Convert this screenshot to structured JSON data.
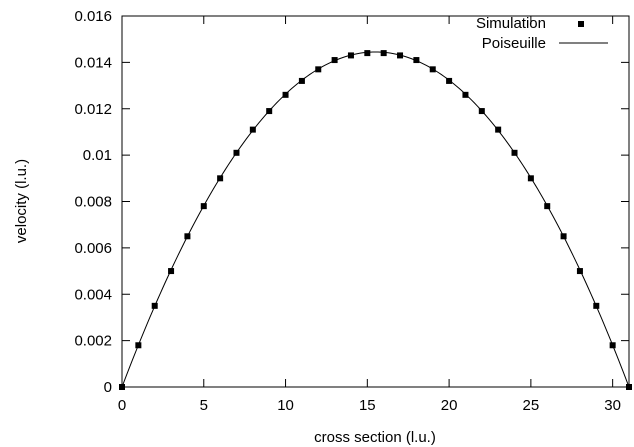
{
  "chart_data": {
    "type": "scatter",
    "title": "",
    "xlabel": "cross section (l.u.)",
    "ylabel": "velocity (l.u.)",
    "xlim": [
      0,
      31
    ],
    "ylim": [
      0,
      0.016
    ],
    "xticks": [
      0,
      5,
      10,
      15,
      20,
      25,
      30
    ],
    "yticks": [
      0,
      0.002,
      0.004,
      0.006,
      0.008,
      0.01,
      0.012,
      0.014,
      0.016
    ],
    "xtick_labels": [
      "0",
      "5",
      "10",
      "15",
      "20",
      "25",
      "30"
    ],
    "ytick_labels": [
      "0",
      "0.002",
      "0.004",
      "0.006",
      "0.008",
      "0.01",
      "0.012",
      "0.014",
      "0.016"
    ],
    "grid": false,
    "legend_position": "top-right",
    "series": [
      {
        "name": "Simulation",
        "style": "square-markers",
        "color": "#000000",
        "x": [
          0,
          1,
          2,
          3,
          4,
          5,
          6,
          7,
          8,
          9,
          10,
          11,
          12,
          13,
          14,
          15,
          16,
          17,
          18,
          19,
          20,
          21,
          22,
          23,
          24,
          25,
          26,
          27,
          28,
          29,
          30,
          31
        ],
        "y": [
          0.0,
          0.0018,
          0.0035,
          0.005,
          0.0065,
          0.0078,
          0.009,
          0.0101,
          0.0111,
          0.0119,
          0.0126,
          0.0132,
          0.0137,
          0.0141,
          0.0143,
          0.0144,
          0.0144,
          0.0143,
          0.0141,
          0.0137,
          0.0132,
          0.0126,
          0.0119,
          0.0111,
          0.0101,
          0.009,
          0.0078,
          0.0065,
          0.005,
          0.0035,
          0.0018,
          0.0
        ]
      },
      {
        "name": "Poiseuille",
        "style": "line",
        "color": "#000000",
        "x_range": [
          0,
          31
        ],
        "peak_x": 15.5,
        "peak_y": 0.01445
      }
    ]
  }
}
